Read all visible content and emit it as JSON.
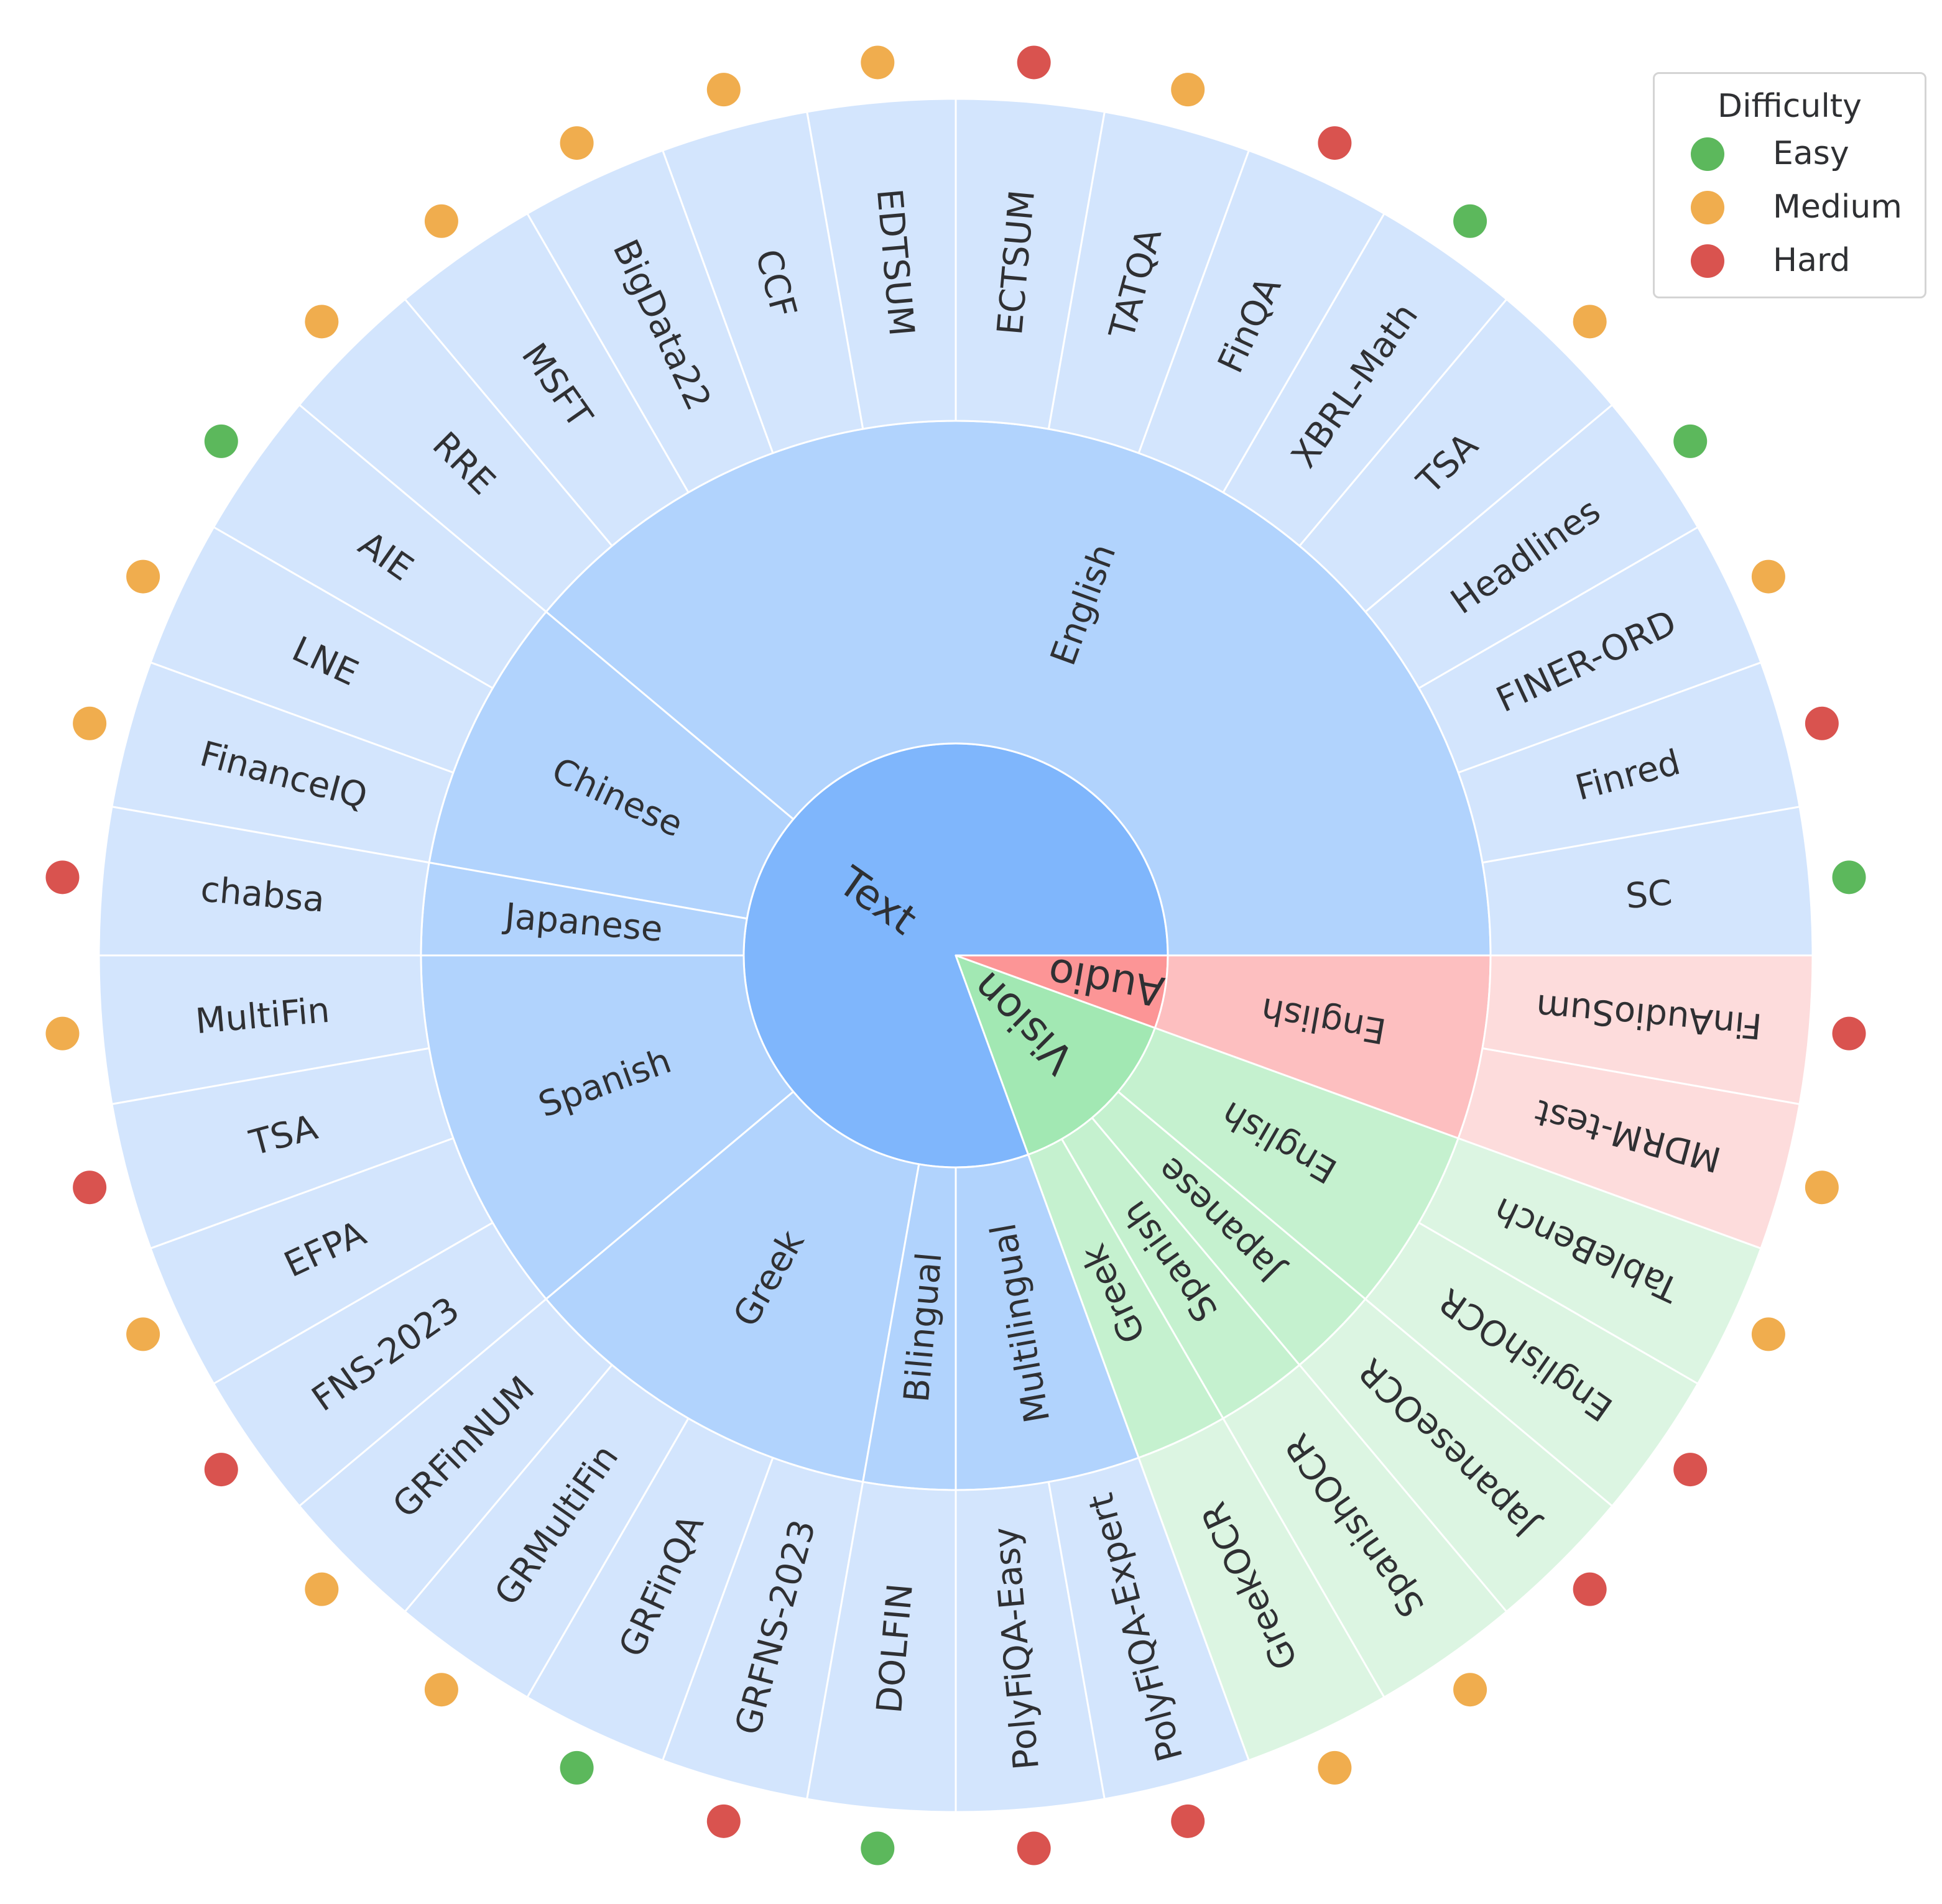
{
  "chart_data": {
    "type": "sunburst",
    "legend": {
      "title": "Difficulty",
      "placement": "top-right",
      "items": [
        {
          "label": "Easy",
          "color": "#5cb85c"
        },
        {
          "label": "Medium",
          "color": "#f0ad4e"
        },
        {
          "label": "Hard",
          "color": "#d9534f"
        }
      ]
    },
    "colors": {
      "Text": {
        "inner": "#7fb6fc",
        "middle": "#b1d3fd",
        "outer": "#d3e5fd"
      },
      "Audio": {
        "inner": "#fc9596",
        "middle": "#fdbfc0",
        "outer": "#fddcdc"
      },
      "Vision": {
        "inner": "#a2e8b3",
        "middle": "#c5f1cf",
        "outer": "#dcf5e2"
      },
      "border": "#ffffff",
      "text": "#2f3033"
    },
    "modalities": [
      {
        "name": "Text",
        "languages": [
          {
            "name": "English",
            "datasets": [
              {
                "name": "SC",
                "difficulty": "Easy"
              },
              {
                "name": "Finred",
                "difficulty": "Hard"
              },
              {
                "name": "FINER-ORD",
                "difficulty": "Medium"
              },
              {
                "name": "Headlines",
                "difficulty": "Easy"
              },
              {
                "name": "TSA",
                "difficulty": "Medium"
              },
              {
                "name": "XBRL-Math",
                "difficulty": "Easy"
              },
              {
                "name": "FinQA",
                "difficulty": "Hard"
              },
              {
                "name": "TATQA",
                "difficulty": "Medium"
              },
              {
                "name": "ECTSUM",
                "difficulty": "Hard"
              },
              {
                "name": "EDTSUM",
                "difficulty": "Medium"
              },
              {
                "name": "CCF",
                "difficulty": "Medium"
              },
              {
                "name": "BigData22",
                "difficulty": "Medium"
              },
              {
                "name": "MSFT",
                "difficulty": "Medium"
              },
              {
                "name": "RRE",
                "difficulty": "Medium"
              }
            ]
          },
          {
            "name": "Chinese",
            "datasets": [
              {
                "name": "AIE",
                "difficulty": "Easy"
              },
              {
                "name": "LNE",
                "difficulty": "Medium"
              },
              {
                "name": "FinanceIQ",
                "difficulty": "Medium"
              }
            ]
          },
          {
            "name": "Japanese",
            "datasets": [
              {
                "name": "chabsa",
                "difficulty": "Hard"
              }
            ]
          },
          {
            "name": "Spanish",
            "datasets": [
              {
                "name": "MultiFin",
                "difficulty": "Medium"
              },
              {
                "name": "TSA",
                "difficulty": "Hard"
              },
              {
                "name": "EFPA",
                "difficulty": "Medium"
              },
              {
                "name": "FNS-2023",
                "difficulty": "Hard"
              }
            ]
          },
          {
            "name": "Greek",
            "datasets": [
              {
                "name": "GRFinNUM",
                "difficulty": "Medium"
              },
              {
                "name": "GRMultiFin",
                "difficulty": "Medium"
              },
              {
                "name": "GRFinQA",
                "difficulty": "Easy"
              },
              {
                "name": "GRFNS-2023",
                "difficulty": "Hard"
              }
            ]
          },
          {
            "name": "Bilingual",
            "datasets": [
              {
                "name": "DOLFIN",
                "difficulty": "Easy"
              }
            ]
          },
          {
            "name": "Multilingual",
            "datasets": [
              {
                "name": "PolyFiQA-Easy",
                "difficulty": "Hard"
              },
              {
                "name": "PolyFiQA-Expert",
                "difficulty": "Hard"
              }
            ]
          }
        ]
      },
      {
        "name": "Vision",
        "languages": [
          {
            "name": "Greek",
            "datasets": [
              {
                "name": "GreekOCR",
                "difficulty": "Medium"
              }
            ]
          },
          {
            "name": "Spanish",
            "datasets": [
              {
                "name": "SpanishOCR",
                "difficulty": "Medium"
              }
            ]
          },
          {
            "name": "Japanese",
            "datasets": [
              {
                "name": "JapaneseOCR",
                "difficulty": "Hard"
              }
            ]
          },
          {
            "name": "English",
            "datasets": [
              {
                "name": "EnglishOCR",
                "difficulty": "Hard"
              },
              {
                "name": "TableBench",
                "difficulty": "Medium"
              }
            ]
          }
        ]
      },
      {
        "name": "Audio",
        "languages": [
          {
            "name": "English",
            "datasets": [
              {
                "name": "MDRM-test",
                "difficulty": "Medium"
              },
              {
                "name": "FinAudioSum",
                "difficulty": "Hard"
              }
            ]
          }
        ]
      }
    ]
  }
}
